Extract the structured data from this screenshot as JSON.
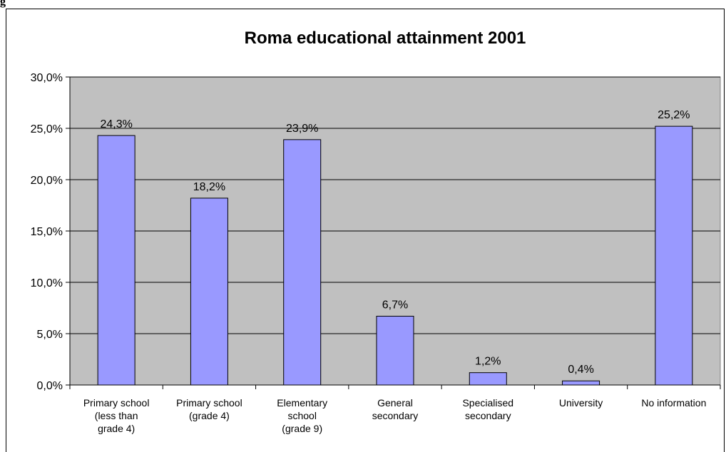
{
  "page_header_fragment": "g",
  "chart_data": {
    "type": "bar",
    "title": "Roma educational attainment 2001",
    "xlabel": "",
    "ylabel": "",
    "ylim": [
      0,
      30
    ],
    "yticks": [
      "0,0%",
      "5,0%",
      "10,0%",
      "15,0%",
      "20,0%",
      "25,0%",
      "30,0%"
    ],
    "ytick_values": [
      0,
      5,
      10,
      15,
      20,
      25,
      30
    ],
    "categories": [
      [
        "Primary school",
        "(less than",
        "grade 4)"
      ],
      [
        "Primary school",
        "(grade 4)"
      ],
      [
        "Elementary",
        "school",
        "(grade 9)"
      ],
      [
        "General",
        "secondary"
      ],
      [
        "Specialised",
        "secondary"
      ],
      [
        "University"
      ],
      [
        "No information"
      ]
    ],
    "values": [
      24.3,
      18.2,
      23.9,
      6.7,
      1.2,
      0.4,
      25.2
    ],
    "value_labels": [
      "24,3%",
      "18,2%",
      "23,9%",
      "6,7%",
      "1,2%",
      "0,4%",
      "25,2%"
    ],
    "grid": true,
    "legend": "none",
    "colors": {
      "plot_bg": "#c0c0c0",
      "bar": "#9999ff",
      "bar_stroke": "#000000",
      "grid": "#000000"
    }
  }
}
